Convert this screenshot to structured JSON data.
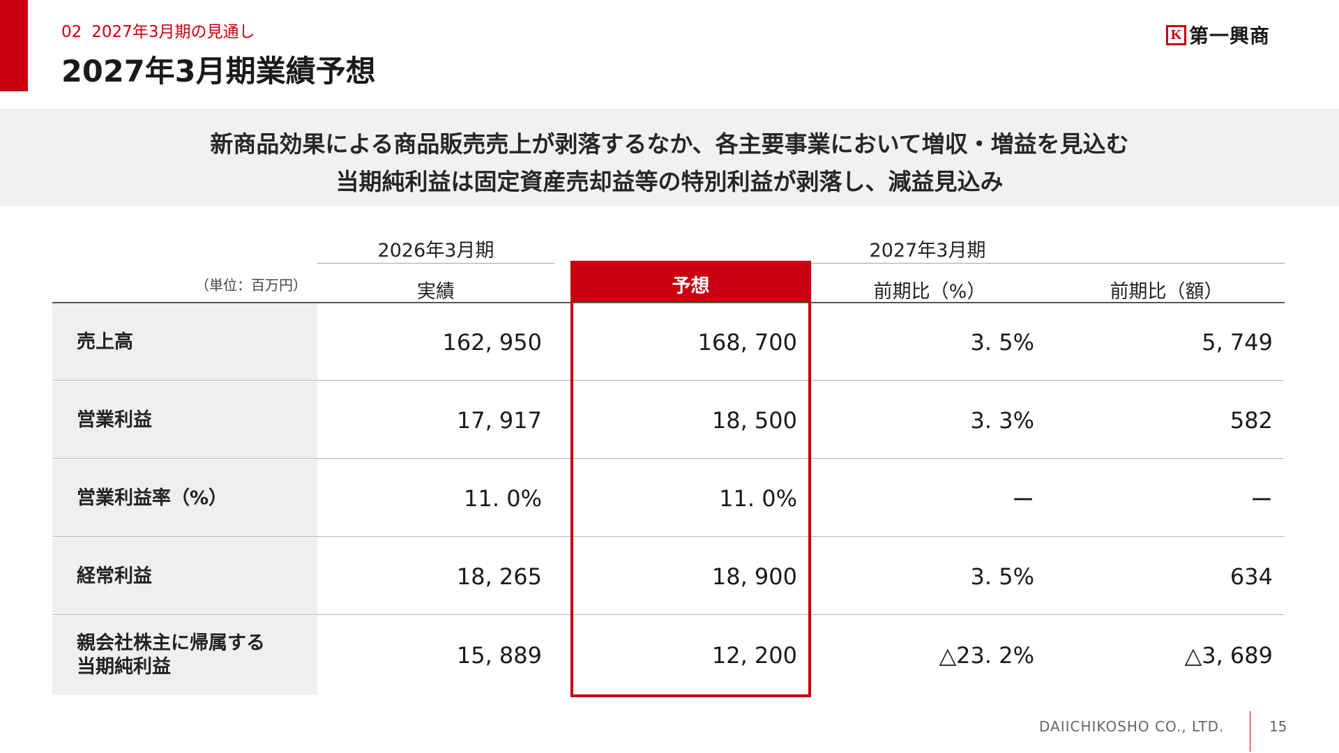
{
  "header": {
    "section_number": "02",
    "section_title": "2027年3月期の見通し",
    "page_title": "2027年3月期業績予想",
    "logo_mark": "K",
    "logo_text": "第一興商"
  },
  "banner": {
    "line1": "新商品効果による商品販売売上が剥落するなか、各主要事業において増収・増益を見込む",
    "line2": "当期純利益は固定資産売却益等の特別利益が剥落し、減益見込み"
  },
  "table": {
    "unit": "（単位：百万円）",
    "period_prev": "2026年3月期",
    "period_next": "2027年3月期",
    "columns": [
      "実績",
      "予想",
      "前期比（%）",
      "前期比（額）"
    ],
    "rows": [
      {
        "label": "売上高",
        "actual": "162, 950",
        "forecast": "168, 700",
        "yoy_pct": "3. 5%",
        "yoy_amt": "5, 749"
      },
      {
        "label": "営業利益",
        "actual": "17, 917",
        "forecast": "18, 500",
        "yoy_pct": "3. 3%",
        "yoy_amt": "582"
      },
      {
        "label": "営業利益率（%）",
        "actual": "11. 0%",
        "forecast": "11. 0%",
        "yoy_pct": "ー",
        "yoy_amt": "ー"
      },
      {
        "label": "経常利益",
        "actual": "18, 265",
        "forecast": "18, 900",
        "yoy_pct": "3. 5%",
        "yoy_amt": "634"
      },
      {
        "label": "親会社株主に帰属する\n当期純利益",
        "label_line1": "親会社株主に帰属する",
        "label_line2": "当期純利益",
        "actual": "15, 889",
        "forecast": "12, 200",
        "yoy_pct": "△23. 2%",
        "yoy_amt": "△3, 689"
      }
    ]
  },
  "footer": {
    "company": "DAIICHIKOSHO CO., LTD.",
    "page": "15"
  },
  "colors": {
    "accent": "#c8000f",
    "banner_bg": "#f1f1f1",
    "label_bg": "#efefef"
  }
}
